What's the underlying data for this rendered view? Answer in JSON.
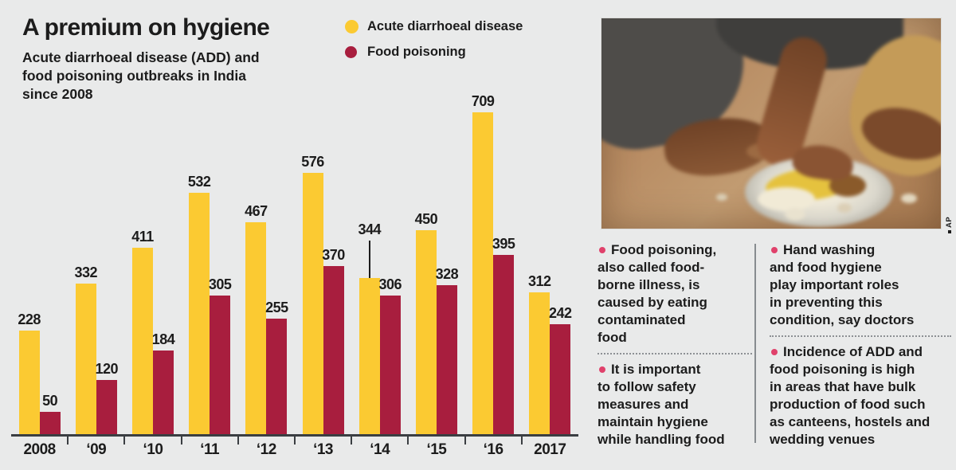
{
  "header": {
    "title": "A premium on hygiene",
    "subtitle": "Acute diarrhoeal disease (ADD) and\nfood poisoning outbreaks in India\nsince 2008"
  },
  "legend": {
    "items": [
      {
        "label": "Acute diarrhoeal disease",
        "color": "#fbca32"
      },
      {
        "label": "Food poisoning",
        "color": "#a81e3e"
      }
    ]
  },
  "chart_data": {
    "type": "bar",
    "title": "A premium on hygiene",
    "xlabel": "",
    "ylabel": "",
    "categories": [
      "2008",
      "‘09",
      "‘10",
      "‘11",
      "‘12",
      "‘13",
      "‘14",
      "‘15",
      "‘16",
      "2017"
    ],
    "series": [
      {
        "name": "Acute diarrhoeal disease",
        "color": "#fbca32",
        "values": [
          228,
          332,
          411,
          532,
          467,
          576,
          344,
          450,
          709,
          312
        ]
      },
      {
        "name": "Food poisoning",
        "color": "#a81e3e",
        "values": [
          50,
          120,
          184,
          305,
          255,
          370,
          306,
          328,
          395,
          242
        ]
      }
    ],
    "ylim": [
      0,
      709
    ],
    "grid": false,
    "legend_position": "top-center",
    "value_labels": true,
    "callout": {
      "series": 0,
      "index": 6
    }
  },
  "photo": {
    "credit": "AP"
  },
  "notes": {
    "column1": [
      "Food poisoning,\nalso called food-\nborne illness, is\ncaused by eating\ncontaminated\nfood",
      "It is important\nto follow safety\nmeasures and\nmaintain hygiene\nwhile handling food"
    ],
    "column2": [
      "Hand washing\nand food hygiene\nplay important roles\nin preventing this\ncondition, say doctors",
      "Incidence of ADD and\nfood poisoning is high\nin areas that have bulk\nproduction of food such\nas canteens, hostels and\nwedding venues"
    ]
  },
  "colors": {
    "background": "#e9eaea",
    "add_bar": "#fbca32",
    "food_poisoning_bar": "#a81e3e",
    "bullet_dot": "#e0416b",
    "axis": "#3a3e42",
    "text": "#1c1c1c"
  }
}
